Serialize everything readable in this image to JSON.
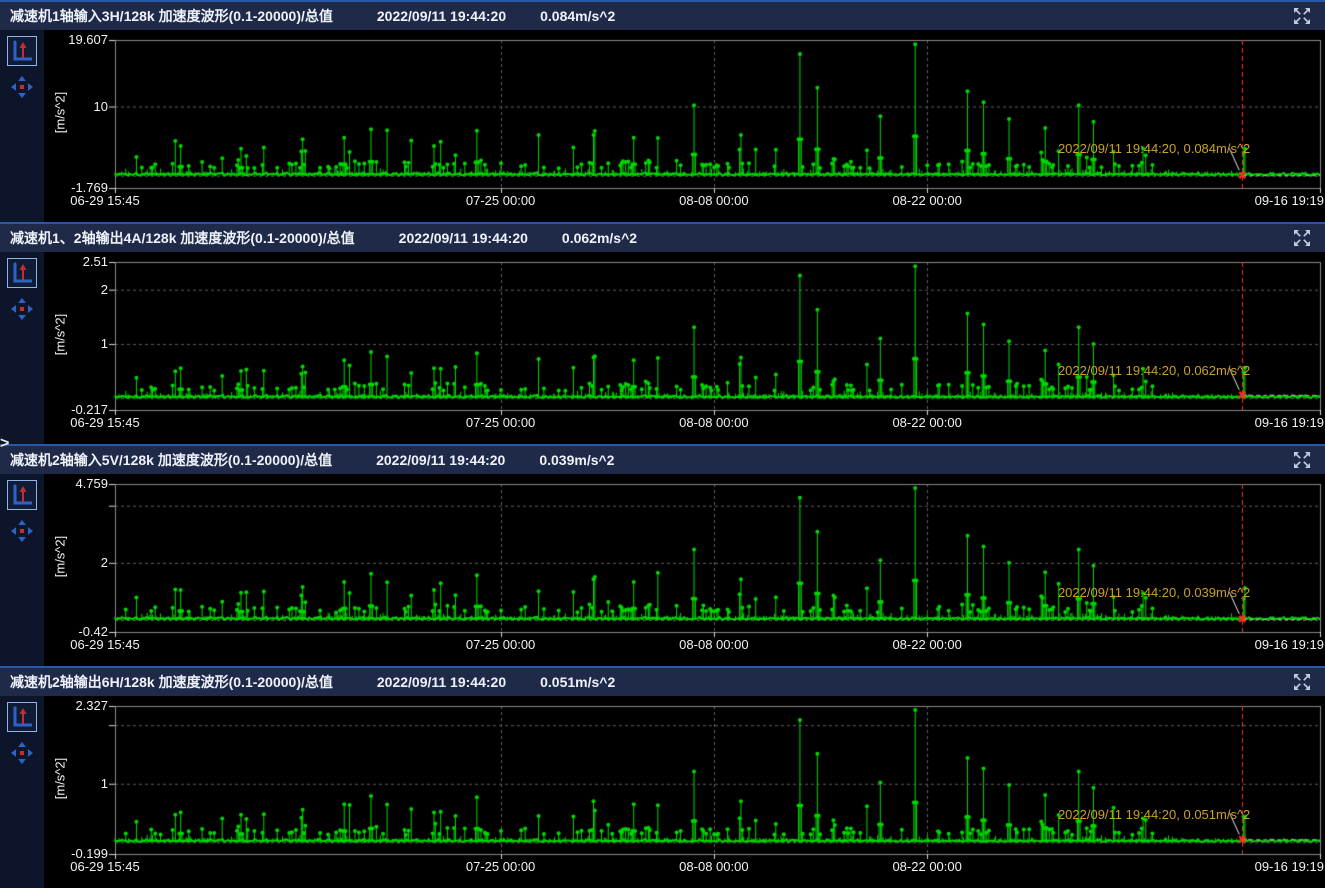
{
  "ui": {
    "sidebar_expander": ">",
    "icons": {
      "fullscreen": "expand-arrows-icon",
      "autoscale": "axis-up-arrow-icon",
      "pan": "four-direction-arrows-icon"
    },
    "colors": {
      "header_bg": "#1f2a48",
      "panel_separator": "#2a57a8",
      "chart_bg": "#000000",
      "waveform": "#00d800",
      "cursor_line": "#ff2a2a",
      "annotation_text": "#c9a227",
      "tick_text": "#f2f2f2",
      "grid": "#5f5f5f"
    }
  },
  "panels": [
    {
      "title": "减速机1轴输入3H/128k 加速度波形(0.1-20000)/总值",
      "timestamp": "2022/09/11 19:44:20",
      "value": "0.084m/s^2"
    },
    {
      "title": "减速机1、2轴输出4A/128k 加速度波形(0.1-20000)/总值",
      "timestamp": "2022/09/11 19:44:20",
      "value": "0.062m/s^2"
    },
    {
      "title": "减速机2轴输入5V/128k 加速度波形(0.1-20000)/总值",
      "timestamp": "2022/09/11 19:44:20",
      "value": "0.039m/s^2"
    },
    {
      "title": "减速机2轴输出6H/128k 加速度波形(0.1-20000)/总值",
      "timestamp": "2022/09/11 19:44:20",
      "value": "0.051m/s^2"
    }
  ],
  "chart_data": [
    {
      "type": "stem",
      "title": "减速机1轴输入3H/128k 加速度波形(0.1-20000)/总值",
      "xlabel": "",
      "ylabel": "[m/s^2]",
      "x_axis_type": "time",
      "x_start": "06-29 15:45",
      "x_end": "09-16 19:19",
      "x_ticks": [
        [
          0,
          "06-29 15:45"
        ],
        [
          0.32,
          "07-25 00:00"
        ],
        [
          0.497,
          "08-08 00:00"
        ],
        [
          0.674,
          "08-22 00:00"
        ],
        [
          1,
          "09-16 19:19"
        ]
      ],
      "y_min": -1.769,
      "y_max": 19.607,
      "y_ticks": [
        [
          19.607,
          "19.607"
        ],
        [
          10,
          "10"
        ],
        [
          -1.769,
          "-1.769"
        ]
      ],
      "h_gridlines": [
        10,
        0
      ],
      "cursor": {
        "f": 0.9355,
        "time": "2022/09/11 19:44:20",
        "value": 0.084,
        "annotation": "2022/09/11 19:44:20, 0.084m/s^2"
      },
      "series": {
        "name": "总值",
        "color": "#00d800",
        "style": "spike-train",
        "note": "dense spike waveform; intermediate points procedurally approximated",
        "major_peaks": [
          [
            0.055,
            4.3
          ],
          [
            0.105,
            3.9
          ],
          [
            0.155,
            3.5
          ],
          [
            0.19,
            5.5
          ],
          [
            0.212,
            6.7
          ],
          [
            0.265,
            4.3
          ],
          [
            0.3,
            6.5
          ],
          [
            0.397,
            5.9
          ],
          [
            0.43,
            5.5
          ],
          [
            0.48,
            10.2
          ],
          [
            0.52,
            5.9
          ],
          [
            0.568,
            17.6
          ],
          [
            0.583,
            12.7
          ],
          [
            0.635,
            8.6
          ],
          [
            0.664,
            19.0
          ],
          [
            0.708,
            12.2
          ],
          [
            0.721,
            10.6
          ],
          [
            0.742,
            8.2
          ],
          [
            0.772,
            6.9
          ],
          [
            0.8,
            10.2
          ],
          [
            0.812,
            7.8
          ]
        ]
      }
    },
    {
      "type": "stem",
      "title": "减速机1、2轴输出4A/128k 加速度波形(0.1-20000)/总值",
      "xlabel": "",
      "ylabel": "[m/s^2]",
      "x_axis_type": "time",
      "x_start": "06-29 15:45",
      "x_end": "09-16 19:19",
      "x_ticks": [
        [
          0,
          "06-29 15:45"
        ],
        [
          0.32,
          "07-25 00:00"
        ],
        [
          0.497,
          "08-08 00:00"
        ],
        [
          0.674,
          "08-22 00:00"
        ],
        [
          1,
          "09-16 19:19"
        ]
      ],
      "y_min": -0.217,
      "y_max": 2.51,
      "y_ticks": [
        [
          2.51,
          "2.51"
        ],
        [
          2,
          "2"
        ],
        [
          1,
          "1"
        ],
        [
          -0.217,
          "-0.217"
        ]
      ],
      "h_gridlines": [
        2,
        1,
        0
      ],
      "cursor": {
        "f": 0.9355,
        "time": "2022/09/11 19:44:20",
        "value": 0.062,
        "annotation": "2022/09/11 19:44:20, 0.062m/s^2"
      },
      "series": {
        "name": "总值",
        "color": "#00d800",
        "style": "spike-train",
        "note": "dense spike waveform; intermediate points procedurally approximated",
        "major_peaks": [
          [
            0.055,
            0.55
          ],
          [
            0.105,
            0.5
          ],
          [
            0.155,
            0.45
          ],
          [
            0.19,
            0.7
          ],
          [
            0.212,
            0.85
          ],
          [
            0.265,
            0.55
          ],
          [
            0.3,
            0.83
          ],
          [
            0.397,
            0.75
          ],
          [
            0.43,
            0.7
          ],
          [
            0.48,
            1.31
          ],
          [
            0.52,
            0.75
          ],
          [
            0.568,
            2.26
          ],
          [
            0.583,
            1.63
          ],
          [
            0.635,
            1.1
          ],
          [
            0.664,
            2.43
          ],
          [
            0.708,
            1.56
          ],
          [
            0.721,
            1.36
          ],
          [
            0.742,
            1.05
          ],
          [
            0.772,
            0.88
          ],
          [
            0.8,
            1.31
          ],
          [
            0.812,
            1.0
          ]
        ]
      }
    },
    {
      "type": "stem",
      "title": "减速机2轴输入5V/128k 加速度波形(0.1-20000)/总值",
      "xlabel": "",
      "ylabel": "[m/s^2]",
      "x_axis_type": "time",
      "x_start": "06-29 15:45",
      "x_end": "09-16 19:19",
      "x_ticks": [
        [
          0,
          "06-29 15:45"
        ],
        [
          0.32,
          "07-25 00:00"
        ],
        [
          0.497,
          "08-08 00:00"
        ],
        [
          0.674,
          "08-22 00:00"
        ],
        [
          1,
          "09-16 19:19"
        ]
      ],
      "y_min": -0.42,
      "y_max": 4.759,
      "y_ticks": [
        [
          4.759,
          "4.759"
        ],
        [
          4,
          ""
        ],
        [
          2,
          "2"
        ],
        [
          -0.42,
          "-0.42"
        ]
      ],
      "h_gridlines": [
        4,
        2,
        0
      ],
      "cursor": {
        "f": 0.9355,
        "time": "2022/09/11 19:44:20",
        "value": 0.039,
        "annotation": "2022/09/11 19:44:20, 0.039m/s^2"
      },
      "series": {
        "name": "总值",
        "color": "#00d800",
        "style": "spike-train",
        "note": "dense spike waveform; intermediate points procedurally approximated",
        "major_peaks": [
          [
            0.055,
            1.05
          ],
          [
            0.105,
            0.95
          ],
          [
            0.155,
            0.86
          ],
          [
            0.19,
            1.33
          ],
          [
            0.212,
            1.62
          ],
          [
            0.265,
            1.05
          ],
          [
            0.3,
            1.57
          ],
          [
            0.397,
            1.43
          ],
          [
            0.43,
            1.33
          ],
          [
            0.48,
            2.47
          ],
          [
            0.52,
            1.43
          ],
          [
            0.568,
            4.28
          ],
          [
            0.583,
            3.09
          ],
          [
            0.635,
            2.09
          ],
          [
            0.664,
            4.62
          ],
          [
            0.708,
            2.95
          ],
          [
            0.721,
            2.57
          ],
          [
            0.742,
            2.0
          ],
          [
            0.772,
            1.67
          ],
          [
            0.8,
            2.47
          ],
          [
            0.812,
            1.9
          ]
        ]
      }
    },
    {
      "type": "stem",
      "title": "减速机2轴输出6H/128k 加速度波形(0.1-20000)/总值",
      "xlabel": "",
      "ylabel": "[m/s^2]",
      "x_axis_type": "time",
      "x_start": "06-29 15:45",
      "x_end": "09-16 19:19",
      "x_ticks": [
        [
          0,
          "06-29 15:45"
        ],
        [
          0.32,
          "07-25 00:00"
        ],
        [
          0.497,
          "08-08 00:00"
        ],
        [
          0.674,
          "08-22 00:00"
        ],
        [
          1,
          "09-16 19:19"
        ]
      ],
      "y_min": -0.199,
      "y_max": 2.327,
      "y_ticks": [
        [
          2.327,
          "2.327"
        ],
        [
          2,
          ""
        ],
        [
          1,
          "1"
        ],
        [
          -0.199,
          "-0.199"
        ]
      ],
      "h_gridlines": [
        2,
        1,
        0
      ],
      "cursor": {
        "f": 0.9355,
        "time": "2022/09/11 19:44:20",
        "value": 0.051,
        "annotation": "2022/09/11 19:44:20, 0.051m/s^2"
      },
      "series": {
        "name": "总值",
        "color": "#00d800",
        "style": "spike-train",
        "note": "dense spike waveform; intermediate points procedurally approximated",
        "major_peaks": [
          [
            0.055,
            0.51
          ],
          [
            0.105,
            0.47
          ],
          [
            0.155,
            0.42
          ],
          [
            0.19,
            0.65
          ],
          [
            0.212,
            0.79
          ],
          [
            0.265,
            0.51
          ],
          [
            0.3,
            0.77
          ],
          [
            0.397,
            0.7
          ],
          [
            0.43,
            0.65
          ],
          [
            0.48,
            1.21
          ],
          [
            0.52,
            0.7
          ],
          [
            0.568,
            2.09
          ],
          [
            0.583,
            1.51
          ],
          [
            0.635,
            1.02
          ],
          [
            0.664,
            2.26
          ],
          [
            0.708,
            1.44
          ],
          [
            0.721,
            1.26
          ],
          [
            0.742,
            0.98
          ],
          [
            0.772,
            0.81
          ],
          [
            0.8,
            1.21
          ],
          [
            0.812,
            0.93
          ]
        ]
      }
    }
  ]
}
